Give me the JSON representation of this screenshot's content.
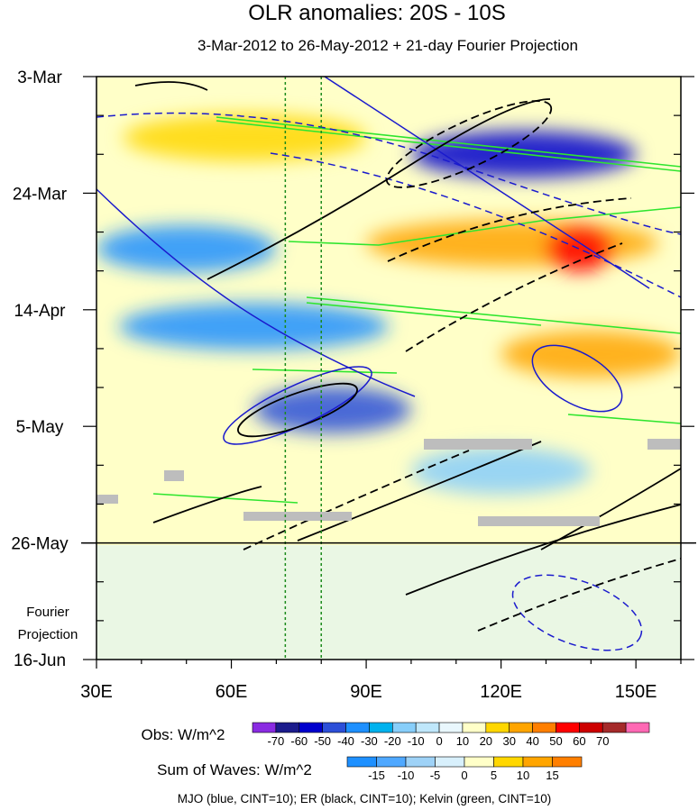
{
  "chart_data": {
    "type": "heatmap",
    "title": "OLR anomalies: 20S - 10S",
    "subtitle": "3-Mar-2012 to 26-May-2012 + 21-day Fourier Projection",
    "x_ticks": [
      {
        "value": 30,
        "label": "30E"
      },
      {
        "value": 60,
        "label": "60E"
      },
      {
        "value": 90,
        "label": "90E"
      },
      {
        "value": 120,
        "label": "120E"
      },
      {
        "value": 150,
        "label": "150E"
      }
    ],
    "xlim": [
      30,
      160
    ],
    "y_ticks": [
      {
        "value": "2012-03-03",
        "label": "3-Mar"
      },
      {
        "value": "2012-03-24",
        "label": "24-Mar"
      },
      {
        "value": "2012-04-14",
        "label": "14-Apr"
      },
      {
        "value": "2012-05-05",
        "label": "5-May"
      },
      {
        "value": "2012-05-26",
        "label": "26-May"
      },
      {
        "value": "2012-06-16",
        "label": "16-Jun"
      }
    ],
    "ylim": [
      "2012-03-03",
      "2012-06-16"
    ],
    "observation_end": "2012-05-26",
    "projection_label": [
      "Fourier",
      "Projection"
    ],
    "reference_lines_lon": [
      72,
      80
    ],
    "colorbar_obs": {
      "label": "Obs: W/m^2",
      "levels": [
        "-70",
        "-60",
        "-50",
        "-40",
        "-30",
        "-20",
        "-10",
        "0",
        "10",
        "20",
        "30",
        "40",
        "50",
        "60",
        "70"
      ],
      "colors": [
        "#8a2be2",
        "#1c1c8c",
        "#0000cd",
        "#2c4fd8",
        "#1e90ff",
        "#00b2ee",
        "#87cefa",
        "#bfe7fb",
        "#e9f7fd",
        "#ffffc8",
        "#ffd700",
        "#ffa500",
        "#ff7f00",
        "#ff0000",
        "#cd0000",
        "#a52a2a",
        "#ff69b4"
      ]
    },
    "colorbar_waves": {
      "label": "Sum of Waves: W/m^2",
      "levels": [
        "-15",
        "-10",
        "-5",
        "0",
        "5",
        "10",
        "15"
      ],
      "colors": [
        "#1e90ff",
        "#4fa8ff",
        "#9ed2f7",
        "#d8f0fc",
        "#ffffc8",
        "#ffd700",
        "#ffa500",
        "#ff7f00"
      ]
    },
    "footnote": "MJO (blue, CINT=10); ER (black, CINT=10); Kelvin (green, CINT=10)",
    "contour_colors": {
      "mjo": "#1a1acd",
      "er": "#000000",
      "kelvin": "#2ee52e"
    },
    "anomaly_regions": [
      {
        "lon": [
          100,
          150
        ],
        "date": "2012-03-17",
        "value": -55
      },
      {
        "lon": [
          36,
          90
        ],
        "date": "2012-03-14",
        "value": 25
      },
      {
        "lon": [
          90,
          155
        ],
        "date": "2012-04-02",
        "value": 30
      },
      {
        "lon": [
          130,
          145
        ],
        "date": "2012-04-03",
        "value": 50
      },
      {
        "lon": [
          30,
          70
        ],
        "date": "2012-04-03",
        "value": -40
      },
      {
        "lon": [
          35,
          95
        ],
        "date": "2012-04-17",
        "value": -35
      },
      {
        "lon": [
          65,
          100
        ],
        "date": "2012-05-02",
        "value": -50
      },
      {
        "lon": [
          120,
          160
        ],
        "date": "2012-04-22",
        "value": 35
      },
      {
        "lon": [
          100,
          140
        ],
        "date": "2012-05-13",
        "value": -20
      },
      {
        "lon": [
          120,
          150
        ],
        "date": "2012-06-06",
        "value": 10
      }
    ]
  }
}
